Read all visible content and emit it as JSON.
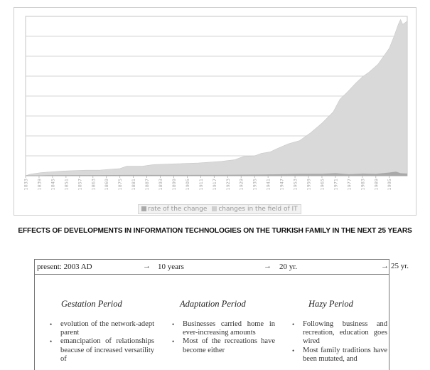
{
  "chart_data": {
    "type": "area",
    "title": "",
    "xlabel": "",
    "ylabel": "",
    "x_tick_labels": [
      "1833",
      "1839",
      "1845",
      "1851",
      "1857",
      "1863",
      "1869",
      "1875",
      "1881",
      "1887",
      "1893",
      "1899",
      "1905",
      "1911",
      "1917",
      "1923",
      "1929",
      "1935",
      "1941",
      "1947",
      "1953",
      "1959",
      "1965",
      "1971",
      "1977",
      "1983",
      "1989",
      "1995"
    ],
    "x_range": [
      1833,
      2003
    ],
    "y_range": [
      0,
      100
    ],
    "grid": true,
    "legend_position": "bottom",
    "series": [
      {
        "name": "rate of the change",
        "color": "#a9a9a9",
        "points": [
          [
            1833,
            0
          ],
          [
            1843,
            0.3
          ],
          [
            1860,
            0.4
          ],
          [
            1880,
            0.5
          ],
          [
            1900,
            0.5
          ],
          [
            1920,
            0.6
          ],
          [
            1940,
            0.8
          ],
          [
            1955,
            1.2
          ],
          [
            1965,
            1.2
          ],
          [
            1971,
            1.6
          ],
          [
            1977,
            1.0
          ],
          [
            1983,
            1.4
          ],
          [
            1989,
            1.2
          ],
          [
            1995,
            2.0
          ],
          [
            1998,
            2.6
          ],
          [
            2000,
            1.6
          ],
          [
            2003,
            1.4
          ]
        ]
      },
      {
        "name": "changes in the field of IT",
        "color": "#d9d9d9",
        "points": [
          [
            1833,
            0
          ],
          [
            1835,
            1
          ],
          [
            1840,
            2
          ],
          [
            1850,
            3
          ],
          [
            1860,
            3.5
          ],
          [
            1866,
            3.5
          ],
          [
            1870,
            4
          ],
          [
            1875,
            4.5
          ],
          [
            1878,
            6
          ],
          [
            1885,
            6
          ],
          [
            1890,
            7
          ],
          [
            1900,
            7.5
          ],
          [
            1910,
            8
          ],
          [
            1920,
            9
          ],
          [
            1926,
            10
          ],
          [
            1930,
            12
          ],
          [
            1935,
            12.5
          ],
          [
            1938,
            14
          ],
          [
            1942,
            15
          ],
          [
            1945,
            17
          ],
          [
            1950,
            20
          ],
          [
            1955,
            22
          ],
          [
            1960,
            27
          ],
          [
            1965,
            33
          ],
          [
            1970,
            40
          ],
          [
            1973,
            48
          ],
          [
            1976,
            52
          ],
          [
            1980,
            58
          ],
          [
            1983,
            62
          ],
          [
            1986,
            65
          ],
          [
            1990,
            70
          ],
          [
            1993,
            76
          ],
          [
            1995,
            80
          ],
          [
            1997,
            87
          ],
          [
            1999,
            95
          ],
          [
            2000,
            98
          ],
          [
            2001,
            95
          ],
          [
            2002,
            96
          ],
          [
            2003,
            97
          ]
        ]
      }
    ]
  },
  "heading": "EFFECTS OF DEVELOPMENTS IN INFORMATION TECHNOLOGIES ON THE TURKISH FAMILY IN THE NEXT 25 YEARS",
  "timeline": {
    "labels": [
      "present: 2003 AD",
      "10 years",
      "20 yr.",
      "25 yr."
    ],
    "arrow": "→",
    "periods": [
      {
        "title": "Gestation Period",
        "items": [
          "evolution of the network-adept parent",
          "emancipation of relationships beacuse of increased versatility of"
        ]
      },
      {
        "title": "Adaptation Period",
        "items": [
          "Businesses carried home in ever-increasing amounts",
          "Most of the recreations have become either"
        ]
      },
      {
        "title": "Hazy Period",
        "items": [
          "Following business and recreation, education goes wired",
          "Most family traditions have been mutated, and"
        ]
      }
    ]
  }
}
